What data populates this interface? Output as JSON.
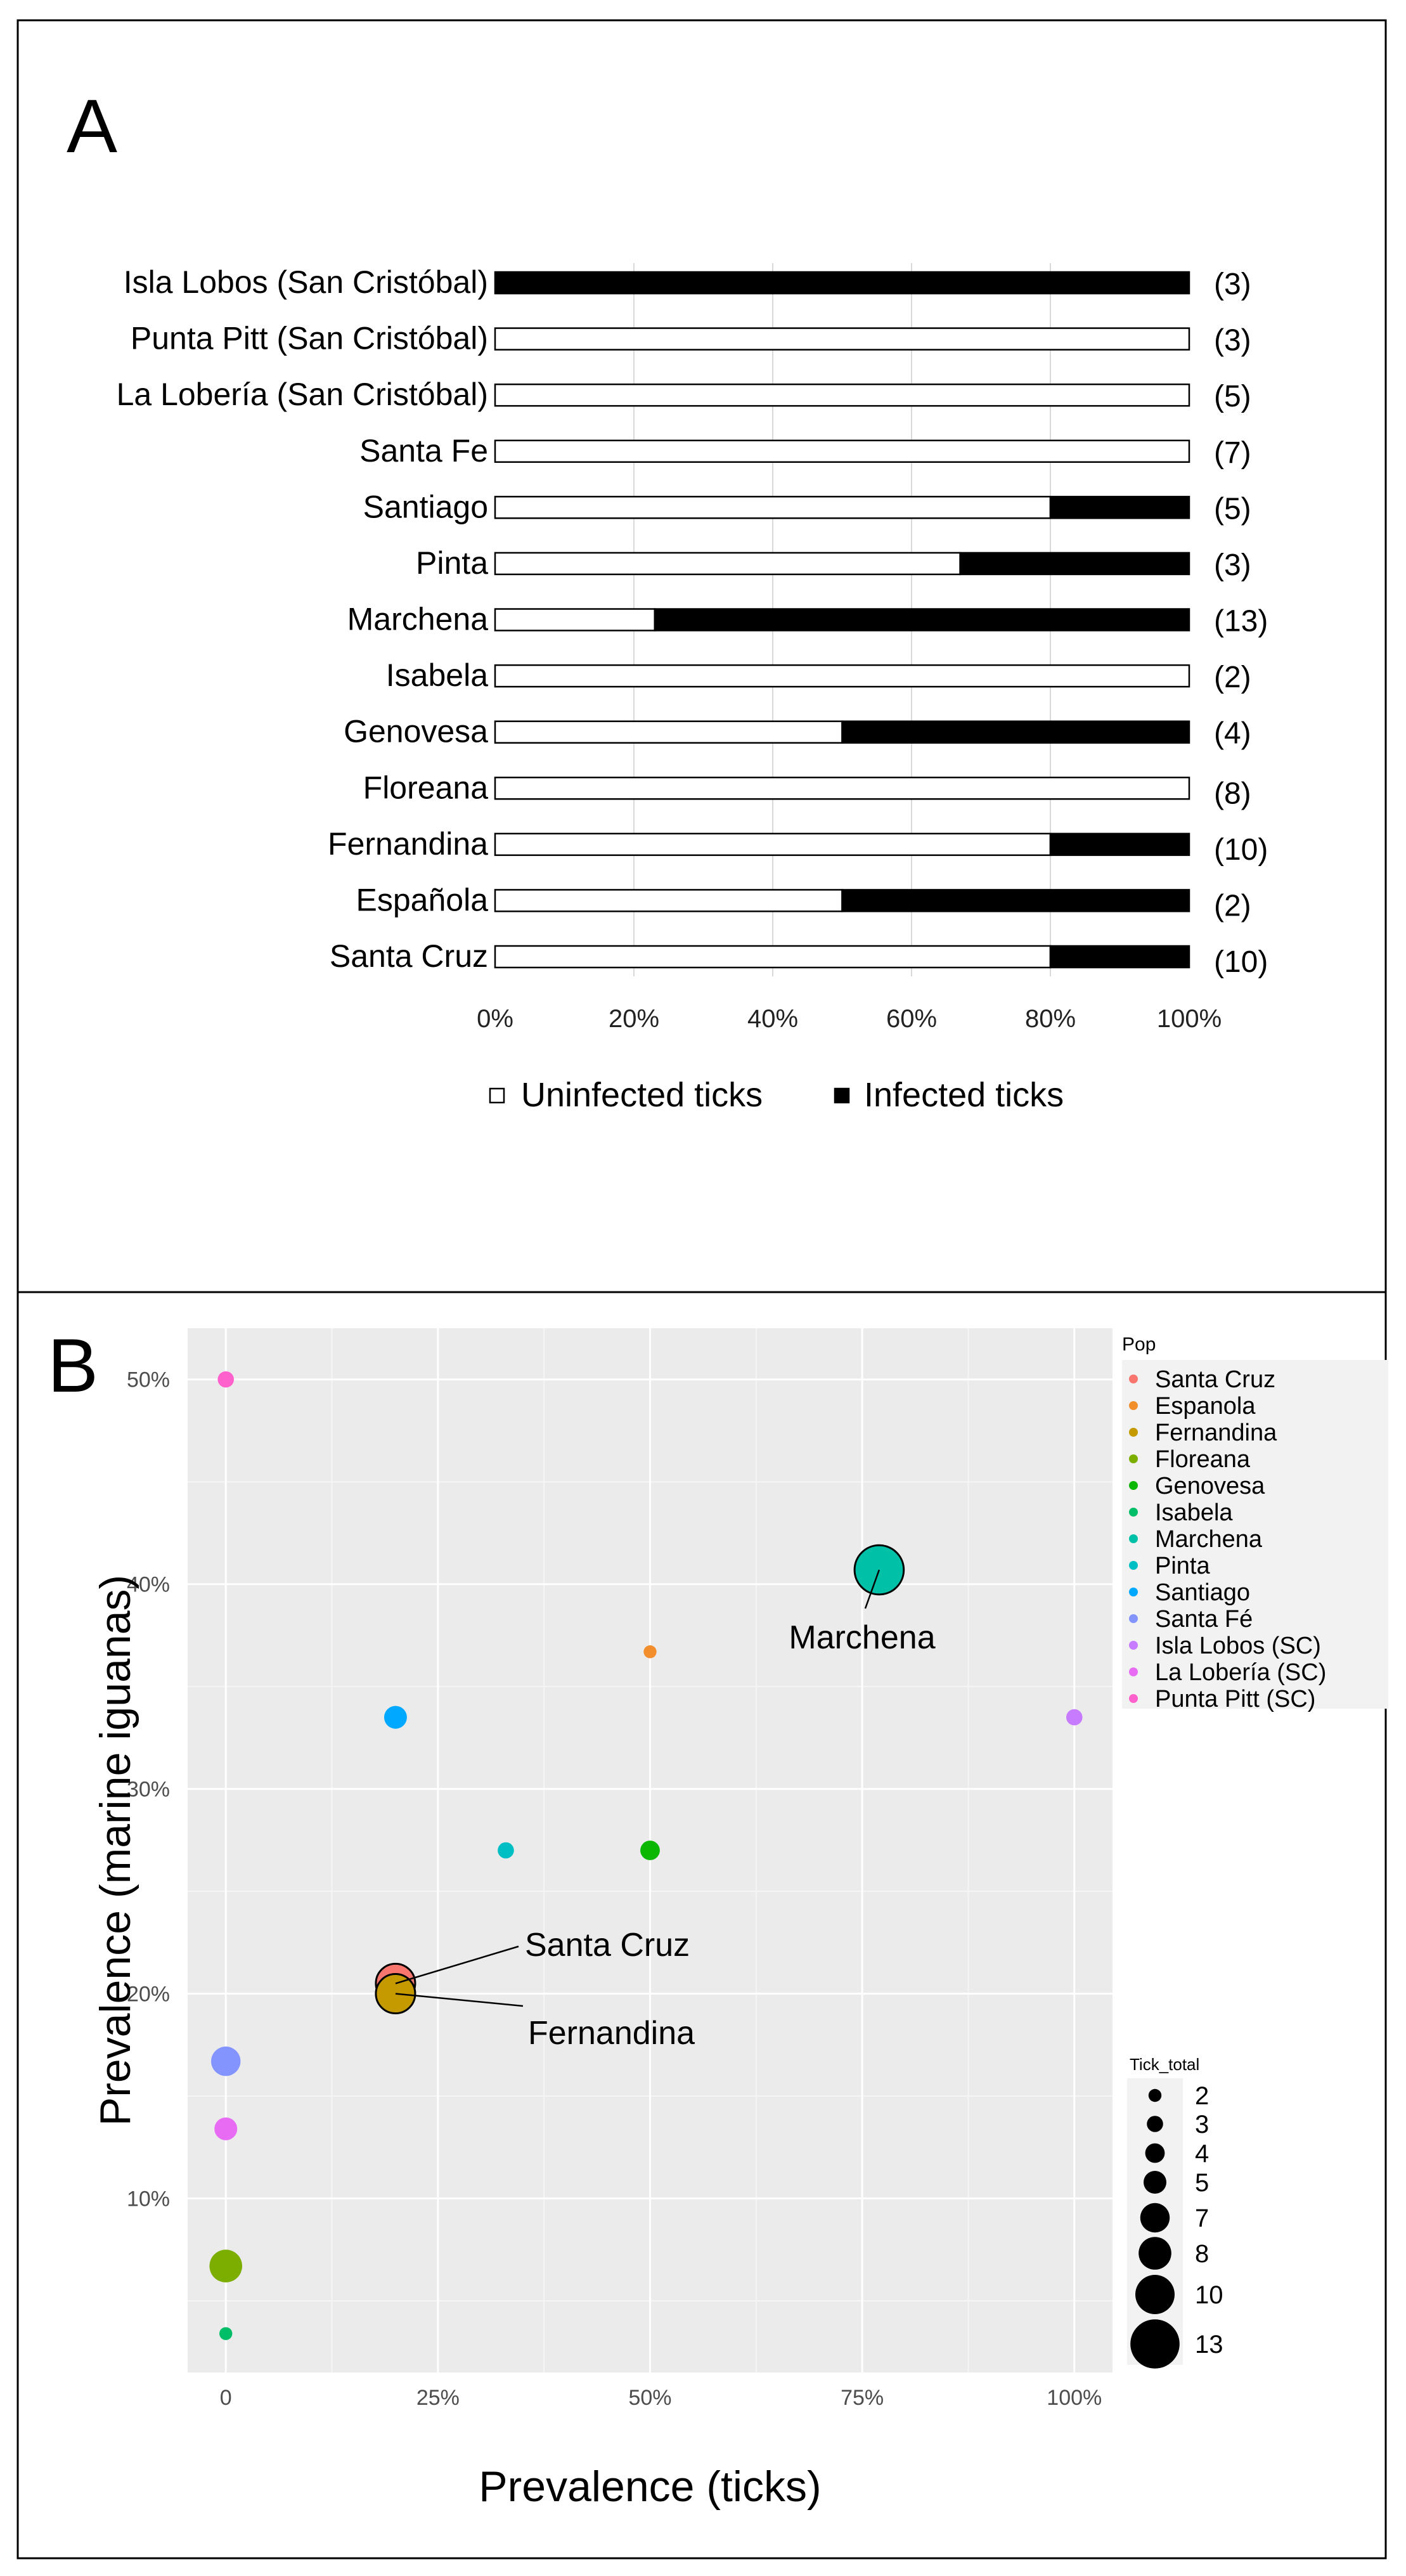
{
  "panel_a": {
    "letter": "A"
  },
  "panel_b": {
    "letter": "B"
  },
  "chart_data": [
    {
      "type": "bar",
      "stacked": true,
      "orientation": "horizontal",
      "categories": [
        "Isla Lobos (San Cristóbal)",
        "Punta Pitt (San Cristóbal)",
        "La Lobería (San Cristóbal)",
        "Santa Fe",
        "Santiago",
        "Pinta",
        "Marchena",
        "Isabela",
        "Genovesa",
        "Floreana",
        "Fernandina",
        "Española",
        "Santa Cruz"
      ],
      "sample_labels": [
        "(3)",
        "(3)",
        "(5)",
        "(7)",
        "(5)",
        "(3)",
        "(13)",
        "(2)",
        "(4)",
        "(8)",
        "(10)",
        "(2)",
        "(10)"
      ],
      "series": [
        {
          "name": "Uninfected ticks",
          "color": "#ffffff",
          "values": [
            0,
            100,
            100,
            100,
            80,
            67,
            23,
            100,
            50,
            100,
            80,
            50,
            80
          ]
        },
        {
          "name": "Infected ticks",
          "color": "#000000",
          "values": [
            100,
            0,
            0,
            0,
            20,
            33,
            77,
            0,
            50,
            0,
            20,
            50,
            20
          ]
        }
      ],
      "xticks": [
        "0%",
        "20%",
        "40%",
        "60%",
        "80%",
        "100%"
      ],
      "xlim": [
        0,
        100
      ],
      "legend": [
        {
          "label": "Uninfected ticks"
        },
        {
          "label": "Infected ticks"
        }
      ],
      "legend_position": "bottom"
    },
    {
      "type": "scatter",
      "xlabel": "Prevalence (ticks)",
      "ylabel": "Prevalence (marine iguanas)",
      "xlim": [
        -4.5,
        104.5
      ],
      "ylim": [
        1.5,
        52.5
      ],
      "xticks": [
        "0",
        "25%",
        "50%",
        "75%",
        "100%"
      ],
      "xtick_values": [
        0,
        25,
        50,
        75,
        100
      ],
      "yticks": [
        "10%",
        "20%",
        "30%",
        "40%",
        "50%"
      ],
      "ytick_values": [
        10,
        20,
        30,
        40,
        50
      ],
      "points": [
        {
          "pop": "Santa Cruz",
          "x": 20,
          "y": 20.5,
          "size": 10,
          "color": "#F8766D",
          "label": "Santa Cruz"
        },
        {
          "pop": "Espanola",
          "x": 50,
          "y": 36.7,
          "size": 2,
          "color": "#F28E2B"
        },
        {
          "pop": "Fernandina",
          "x": 20,
          "y": 20.0,
          "size": 10,
          "color": "#C49A00",
          "label": "Fernandina"
        },
        {
          "pop": "Floreana",
          "x": 0,
          "y": 6.7,
          "size": 8,
          "color": "#7CAE00"
        },
        {
          "pop": "Genovesa",
          "x": 50,
          "y": 27.0,
          "size": 4,
          "color": "#0CB702"
        },
        {
          "pop": "Isabela",
          "x": 0,
          "y": 3.4,
          "size": 2,
          "color": "#00BE67"
        },
        {
          "pop": "Marchena",
          "x": 77,
          "y": 40.7,
          "size": 13,
          "color": "#00C1A8",
          "label": "Marchena"
        },
        {
          "pop": "Pinta",
          "x": 33,
          "y": 27.0,
          "size": 3,
          "color": "#00BFC4"
        },
        {
          "pop": "Santiago",
          "x": 20,
          "y": 33.5,
          "size": 5,
          "color": "#00A9FF"
        },
        {
          "pop": "Santa Fé",
          "x": 0,
          "y": 16.7,
          "size": 7,
          "color": "#8494FF"
        },
        {
          "pop": "Isla Lobos (SC)",
          "x": 100,
          "y": 33.5,
          "size": 3,
          "color": "#C77CFF"
        },
        {
          "pop": "La Lobería (SC)",
          "x": 0,
          "y": 13.4,
          "size": 5,
          "color": "#E76BF3"
        },
        {
          "pop": "Punta Pitt (SC)",
          "x": 0,
          "y": 50.0,
          "size": 3,
          "color": "#FF61CC"
        }
      ],
      "legend_color": {
        "title": "Pop",
        "position": "right",
        "entries": [
          "Santa Cruz",
          "Espanola",
          "Fernandina",
          "Floreana",
          "Genovesa",
          "Isabela",
          "Marchena",
          "Pinta",
          "Santiago",
          "Santa Fé",
          "Isla Lobos (SC)",
          "La Lobería (SC)",
          "Punta Pitt (SC)"
        ]
      },
      "legend_size": {
        "title": "Tick_total",
        "position": "right",
        "entries": [
          "2",
          "3",
          "4",
          "5",
          "7",
          "8",
          "10",
          "13"
        ]
      }
    }
  ]
}
